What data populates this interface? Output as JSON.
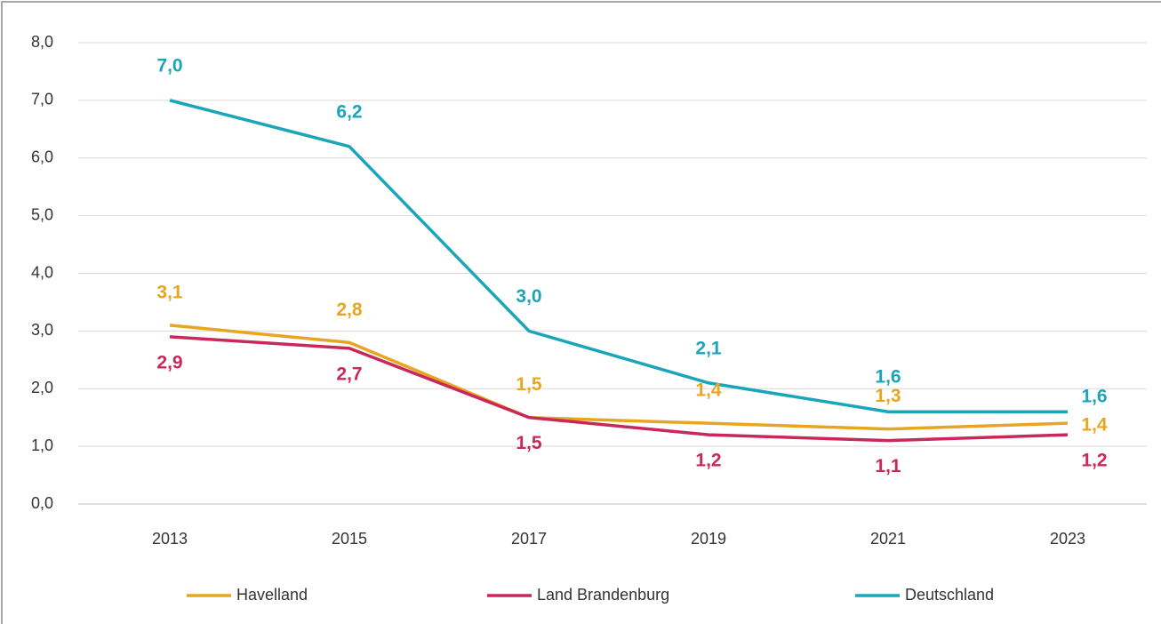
{
  "chart_data": {
    "type": "line",
    "categories": [
      "2013",
      "2015",
      "2017",
      "2019",
      "2021",
      "2023"
    ],
    "series": [
      {
        "name": "Havelland",
        "color": "#e8a521",
        "values": [
          3.1,
          2.8,
          1.5,
          1.4,
          1.3,
          1.4
        ],
        "value_labels": [
          "3,1",
          "2,8",
          "1,5",
          "1,4",
          "1,3",
          "1,4"
        ]
      },
      {
        "name": "Land Brandenburg",
        "color": "#c8285a",
        "values": [
          2.9,
          2.7,
          1.5,
          1.2,
          1.1,
          1.2
        ],
        "value_labels": [
          "2,9",
          "2,7",
          "1,5",
          "1,2",
          "1,1",
          "1,2"
        ]
      },
      {
        "name": "Deutschland",
        "color": "#1aa5b8",
        "values": [
          7.0,
          6.2,
          3.0,
          2.1,
          1.6,
          1.6
        ],
        "value_labels": [
          "7,0",
          "6,2",
          "3,0",
          "2,1",
          "1,6",
          "1,6"
        ]
      }
    ],
    "ylim": [
      0,
      8
    ],
    "yticks": [
      {
        "value": 0,
        "label": "0,0"
      },
      {
        "value": 1,
        "label": "1,0"
      },
      {
        "value": 2,
        "label": "2,0"
      },
      {
        "value": 3,
        "label": "3,0"
      },
      {
        "value": 4,
        "label": "4,0"
      },
      {
        "value": 5,
        "label": "5,0"
      },
      {
        "value": 6,
        "label": "6,0"
      },
      {
        "value": 7,
        "label": "7,0"
      },
      {
        "value": 8,
        "label": "8,0"
      }
    ],
    "grid": true,
    "legend": "bottom"
  }
}
